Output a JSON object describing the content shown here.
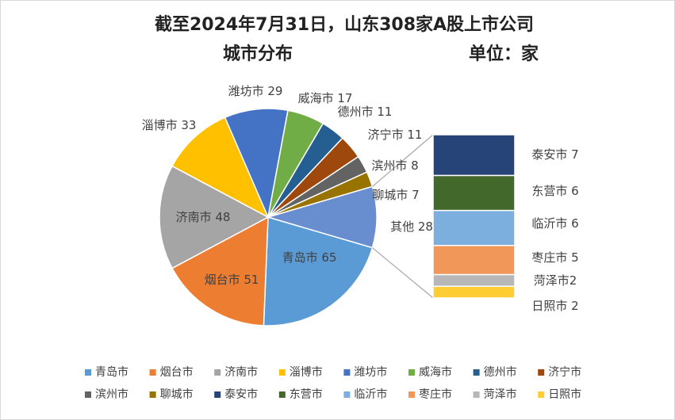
{
  "chart_data": {
    "type": "pie",
    "subtype": "bar-of-pie",
    "title_line1": "截至2024年7月31日，山东308家A股上市公司",
    "title_line2": "城市分布",
    "unit_label": "单位：家",
    "slices": [
      {
        "name": "青岛市",
        "value": 65,
        "label": "青岛市 65",
        "color": "#5b9bd5"
      },
      {
        "name": "烟台市",
        "value": 51,
        "label": "烟台市 51",
        "color": "#ed7d31"
      },
      {
        "name": "济南市",
        "value": 48,
        "label": "济南市 48",
        "color": "#a5a5a5"
      },
      {
        "name": "淄博市",
        "value": 33,
        "label": "淄博市 33",
        "color": "#ffc000"
      },
      {
        "name": "潍坊市",
        "value": 29,
        "label": "潍坊市 29",
        "color": "#4472c4"
      },
      {
        "name": "威海市",
        "value": 17,
        "label": "威海市 17",
        "color": "#70ad47"
      },
      {
        "name": "德州市",
        "value": 11,
        "label": "德州市 11",
        "color": "#255e91"
      },
      {
        "name": "济宁市",
        "value": 11,
        "label": "济宁市 11",
        "color": "#9e480e"
      },
      {
        "name": "滨州市",
        "value": 8,
        "label": "滨州市 8",
        "color": "#636363"
      },
      {
        "name": "聊城市",
        "value": 7,
        "label": "聊城市 7",
        "color": "#997300"
      }
    ],
    "other": {
      "name": "其他",
      "value": 28,
      "label": "其他 28",
      "color": "#698ed0"
    },
    "breakout": [
      {
        "name": "泰安市",
        "value": 7,
        "label": "泰安市 7",
        "color": "#264478"
      },
      {
        "name": "东营市",
        "value": 6,
        "label": "东营市 6",
        "color": "#43682b"
      },
      {
        "name": "临沂市",
        "value": 6,
        "label": "临沂市 6",
        "color": "#7cafdd"
      },
      {
        "name": "枣庄市",
        "value": 5,
        "label": "枣庄市 5",
        "color": "#f1975a"
      },
      {
        "name": "菏泽市",
        "value": 2,
        "label": "菏泽市2",
        "color": "#b7b7b7"
      },
      {
        "name": "日照市",
        "value": 2,
        "label": "日照市 2",
        "color": "#ffcd33"
      }
    ],
    "legend": {
      "placement": "bottom",
      "items": [
        {
          "name": "青岛市",
          "color": "#5b9bd5"
        },
        {
          "name": "烟台市",
          "color": "#ed7d31"
        },
        {
          "name": "济南市",
          "color": "#a5a5a5"
        },
        {
          "name": "淄博市",
          "color": "#ffc000"
        },
        {
          "name": "潍坊市",
          "color": "#4472c4"
        },
        {
          "name": "威海市",
          "color": "#70ad47"
        },
        {
          "name": "德州市",
          "color": "#255e91"
        },
        {
          "name": "济宁市",
          "color": "#9e480e"
        },
        {
          "name": "滨州市",
          "color": "#636363"
        },
        {
          "name": "聊城市",
          "color": "#997300"
        },
        {
          "name": "泰安市",
          "color": "#264478"
        },
        {
          "name": "东营市",
          "color": "#43682b"
        },
        {
          "name": "临沂市",
          "color": "#7cafdd"
        },
        {
          "name": "枣庄市",
          "color": "#f1975a"
        },
        {
          "name": "菏泽市",
          "color": "#b7b7b7"
        },
        {
          "name": "日照市",
          "color": "#ffcd33"
        }
      ]
    }
  }
}
